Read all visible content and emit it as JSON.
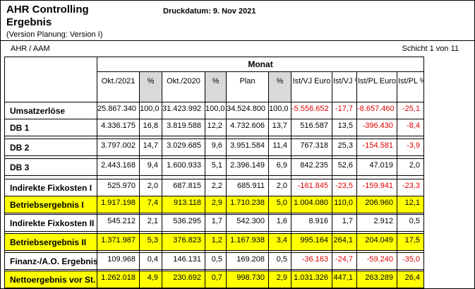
{
  "colors": {
    "highlight_yellow": "#ffff00",
    "negative_red": "#e00000",
    "hatch_gray": "#b3b3b3"
  },
  "header": {
    "title_line1": "AHR Controlling",
    "title_line2": "Ergebnis",
    "version": "(Version Planung: Version I)",
    "print_date": "Druckdatum: 9. Nov 2021",
    "org": "AHR / AAM",
    "page_info": "Schicht 1 von 11"
  },
  "table": {
    "group_header": "Monat",
    "columns": [
      {
        "label": "Okt./2021",
        "hatched": false
      },
      {
        "label": "%",
        "hatched": true
      },
      {
        "label": "Okt./2020",
        "hatched": false
      },
      {
        "label": "%",
        "hatched": true
      },
      {
        "label": "Plan",
        "hatched": false
      },
      {
        "label": "%",
        "hatched": true
      },
      {
        "label": "Ist/VJ\nEuro",
        "hatched": false
      },
      {
        "label": "Ist/VJ\n%",
        "hatched": false
      },
      {
        "label": "Ist/PL\nEuro",
        "hatched": false
      },
      {
        "label": "Ist/PL\n%",
        "hatched": false
      }
    ],
    "rows": [
      {
        "label": "Umsatzerlöse",
        "highlight": false,
        "gap_after": 0,
        "values": [
          "25.867.340",
          "100,0",
          "31.423.992",
          "100,0",
          "34.524.800",
          "100,0",
          "-5.556.652",
          "-17,7",
          "-8.657.460",
          "-25,1"
        ]
      },
      {
        "label": "DB 1",
        "highlight": false,
        "gap_after": 4,
        "values": [
          "4.336.175",
          "16,8",
          "3.819.588",
          "12,2",
          "4.732.606",
          "13,7",
          "516.587",
          "13,5",
          "-396.430",
          "-8,4"
        ]
      },
      {
        "label": "DB 2",
        "highlight": false,
        "gap_after": 4,
        "values": [
          "3.797.002",
          "14,7",
          "3.029.685",
          "9,6",
          "3.951.584",
          "11,4",
          "767.318",
          "25,3",
          "-154.581",
          "-3,9"
        ]
      },
      {
        "label": "DB 3",
        "highlight": false,
        "gap_after": 5,
        "values": [
          "2.443.168",
          "9,4",
          "1.600.933",
          "5,1",
          "2.396.149",
          "6,9",
          "842.235",
          "52,6",
          "47.019",
          "2,0"
        ]
      },
      {
        "label": "Indirekte Fixkosten I",
        "highlight": false,
        "gap_after": 0,
        "values": [
          "525.970",
          "2,0",
          "687.815",
          "2,2",
          "685.911",
          "2,0",
          "-161.845",
          "-23,5",
          "-159.941",
          "-23,3"
        ]
      },
      {
        "label": "Betriebsergebnis I",
        "highlight": true,
        "gap_after": 2,
        "values": [
          "1.917.198",
          "7,4",
          "913.118",
          "2,9",
          "1.710.238",
          "5,0",
          "1.004.080",
          "110,0",
          "206.960",
          "12,1"
        ]
      },
      {
        "label": "Indirekte Fixkosten II",
        "highlight": false,
        "gap_after": 3,
        "values": [
          "545.212",
          "2,1",
          "536.295",
          "1,7",
          "542.300",
          "1,6",
          "8.916",
          "1,7",
          "2.912",
          "0,5"
        ]
      },
      {
        "label": "Betriebsergebnis II",
        "highlight": true,
        "gap_after": 3,
        "values": [
          "1.371.987",
          "5,3",
          "376.823",
          "1,2",
          "1.167.938",
          "3,4",
          "995.164",
          "264,1",
          "204.049",
          "17,5"
        ]
      },
      {
        "label": "Finanz-/A.O. Ergebnis",
        "highlight": false,
        "gap_after": 2,
        "values": [
          "109.968",
          "0,4",
          "146.131",
          "0,5",
          "169.208",
          "0,5",
          "-36.163",
          "-24,7",
          "-59.240",
          "-35,0"
        ]
      },
      {
        "label": "Nettoergebnis vor St.",
        "highlight": true,
        "gap_after": 0,
        "values": [
          "1.262.018",
          "4,9",
          "230.692",
          "0,7",
          "998.730",
          "2,9",
          "1.031.326",
          "447,1",
          "263.289",
          "26,4"
        ]
      }
    ]
  }
}
